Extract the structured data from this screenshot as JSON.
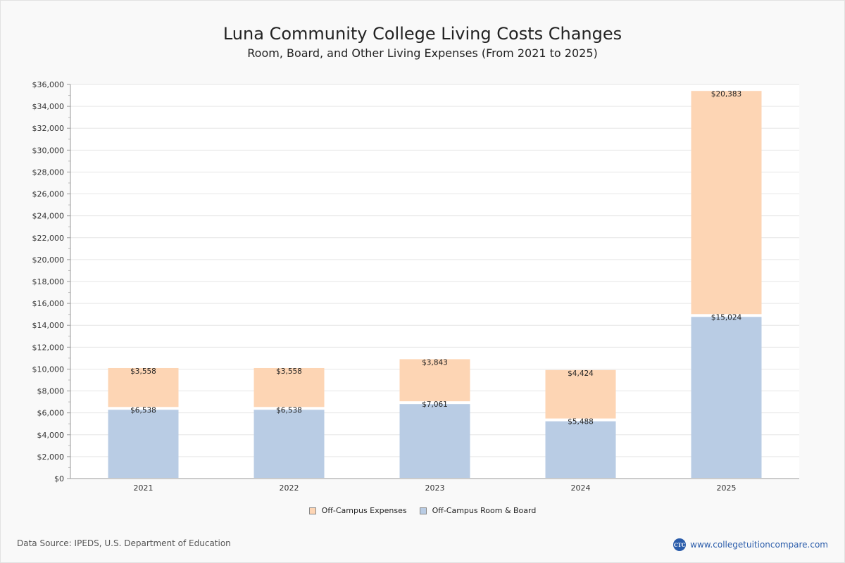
{
  "header": {
    "title": "Luna Community College Living Costs Changes",
    "subtitle": "Room, Board, and Other Living Expenses (From 2021 to 2025)"
  },
  "footer": {
    "source": "Data Source: IPEDS, U.S. Department of Education",
    "brand_url": "www.collegetuitioncompare.com",
    "brand_logo_text": "CTC"
  },
  "chart_data": {
    "type": "bar",
    "stacked": true,
    "title": "Luna Community College Living Costs Changes",
    "subtitle": "Room, Board, and Other Living Expenses (From 2021 to 2025)",
    "categories": [
      "2021",
      "2022",
      "2023",
      "2024",
      "2025"
    ],
    "series": [
      {
        "name": "Off-Campus Room & Board",
        "color": "#b9cce4",
        "values": [
          6538,
          6538,
          7061,
          5488,
          15024
        ],
        "labels": [
          "$6,538",
          "$6,538",
          "$7,061",
          "$5,488",
          "$15,024"
        ]
      },
      {
        "name": "Off-Campus Expenses",
        "color": "#fdd5b4",
        "values": [
          3558,
          3558,
          3843,
          4424,
          20383
        ],
        "labels": [
          "$3,558",
          "$3,558",
          "$3,843",
          "$4,424",
          "$20,383"
        ]
      }
    ],
    "legend_order": [
      "Off-Campus Expenses",
      "Off-Campus Room & Board"
    ],
    "ylim": [
      0,
      36000
    ],
    "ytick_step": 2000,
    "ytick_labels": [
      "$0",
      "$2,000",
      "$4,000",
      "$6,000",
      "$8,000",
      "$10,000",
      "$12,000",
      "$14,000",
      "$16,000",
      "$18,000",
      "$20,000",
      "$22,000",
      "$24,000",
      "$26,000",
      "$28,000",
      "$30,000",
      "$32,000",
      "$34,000",
      "$36,000"
    ],
    "xlabel": "",
    "ylabel": "",
    "grid": true,
    "legend": "bottom-center"
  }
}
